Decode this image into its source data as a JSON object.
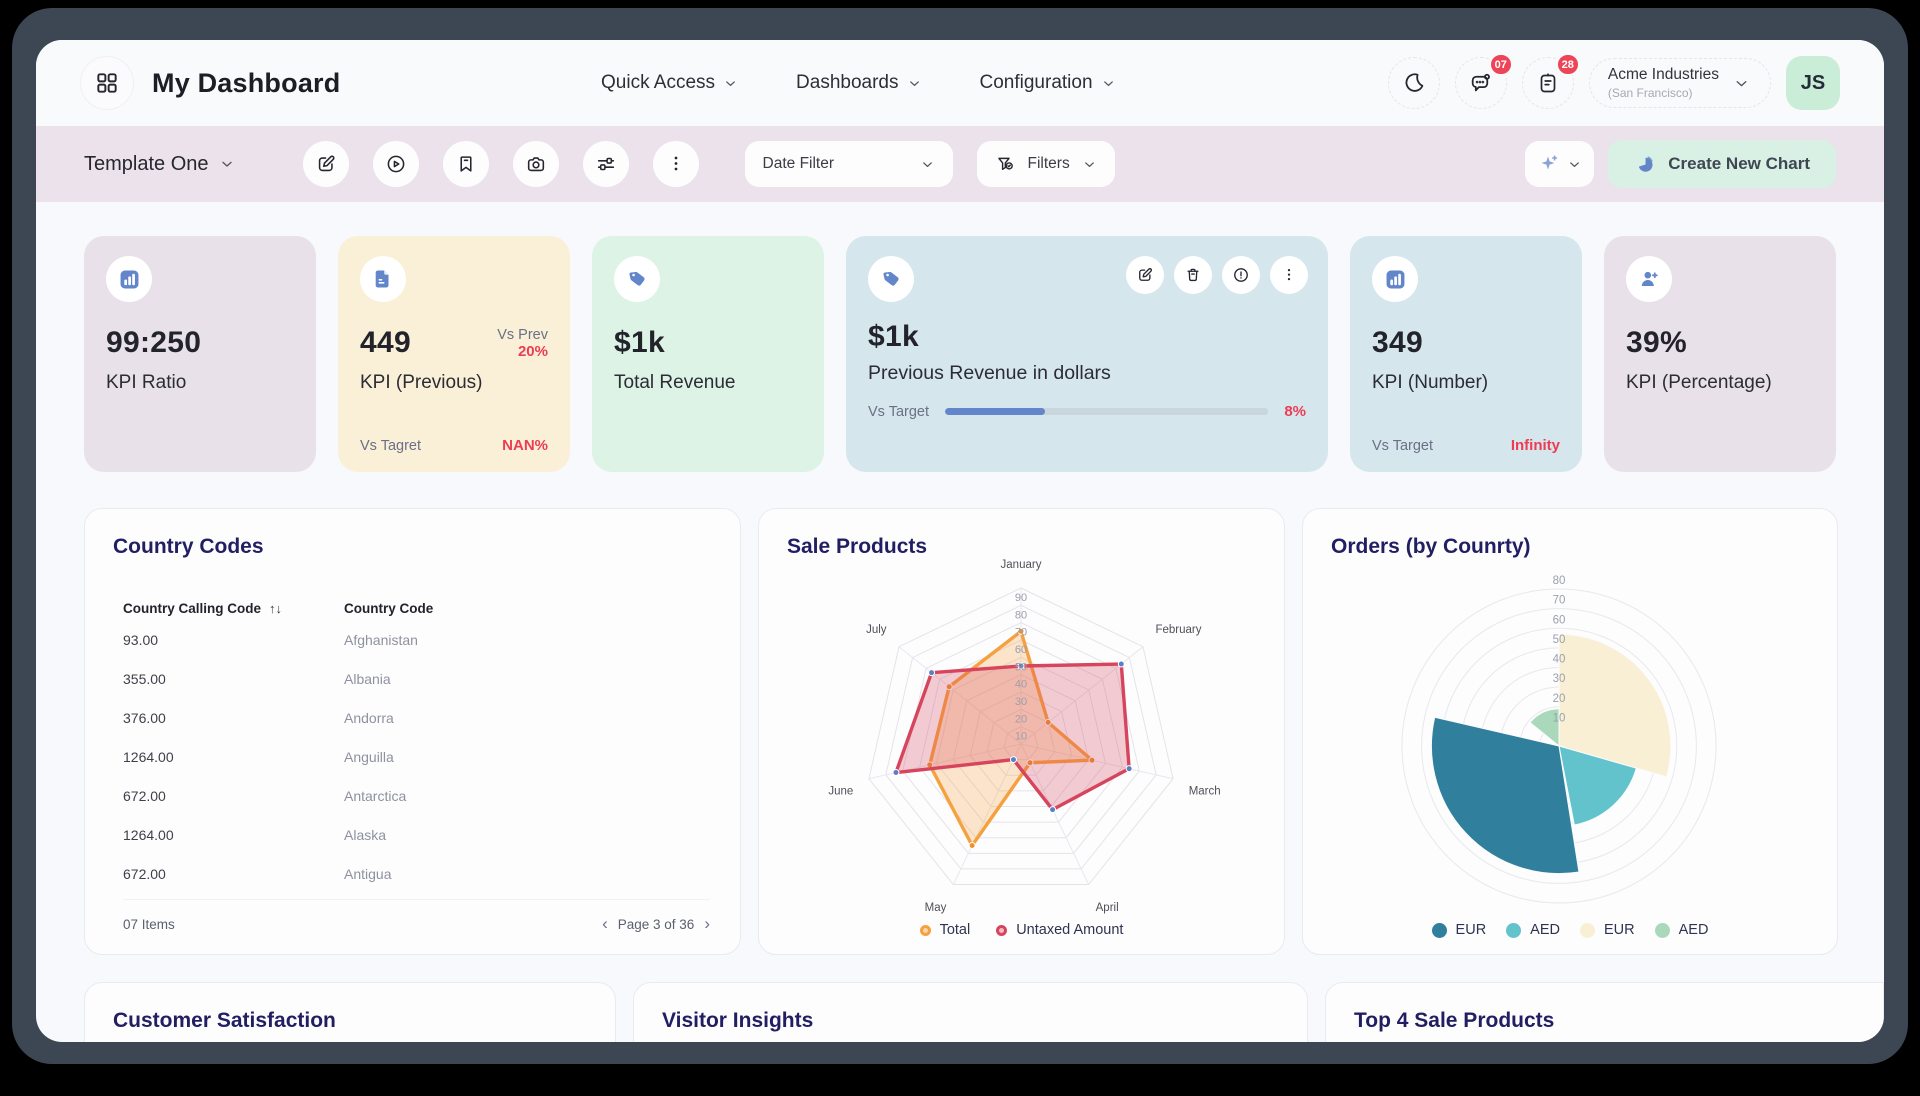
{
  "header": {
    "title": "My Dashboard",
    "nav": [
      {
        "label": "Quick Access"
      },
      {
        "label": "Dashboards"
      },
      {
        "label": "Configuration"
      }
    ],
    "chat_badge": "07",
    "tasks_badge": "28",
    "company": {
      "name": "Acme Industries",
      "location": "(San Francisco)"
    },
    "avatar_initials": "JS"
  },
  "toolbar": {
    "template": "Template One",
    "date_filter": "Date Filter",
    "filters": "Filters",
    "create_chart": "Create New Chart"
  },
  "kpis": {
    "ratio": {
      "value": "99:250",
      "label": "KPI Ratio"
    },
    "previous": {
      "value": "449",
      "label": "KPI (Previous)",
      "vs_prev_label": "Vs Prev",
      "vs_prev_value": "20%",
      "vs_target_label": "Vs Tagret",
      "vs_target_value": "NAN%"
    },
    "revenue": {
      "value": "$1k",
      "label": "Total Revenue"
    },
    "prev_revenue": {
      "value": "$1k",
      "label": "Previous Revenue in dollars",
      "vs_target_label": "Vs Target",
      "vs_target_value": "8%",
      "progress_pct": 31
    },
    "number": {
      "value": "349",
      "label": "KPI (Number)",
      "vs_target_label": "Vs Target",
      "vs_target_value": "Infinity"
    },
    "percentage": {
      "value": "39%",
      "label": "KPI (Percentage)"
    }
  },
  "country_codes": {
    "title": "Country Codes",
    "columns": [
      "Country Calling Code",
      "Country Code"
    ],
    "rows": [
      [
        "93.00",
        "Afghanistan"
      ],
      [
        "355.00",
        "Albania"
      ],
      [
        "376.00",
        "Andorra"
      ],
      [
        "1264.00",
        "Anguilla"
      ],
      [
        "672.00",
        "Antarctica"
      ],
      [
        "1264.00",
        "Alaska"
      ],
      [
        "672.00",
        "Antigua"
      ]
    ],
    "items_label": "07 Items",
    "page_label": "Page 3 of 36"
  },
  "chart_data": [
    {
      "type": "radar",
      "title": "Sale Products",
      "categories": [
        "January",
        "February",
        "March",
        "April",
        "May",
        "June",
        "July"
      ],
      "rticks": [
        10,
        20,
        30,
        40,
        50,
        60,
        70,
        80,
        90
      ],
      "rmax": 90,
      "grid": true,
      "legend_position": "bottom",
      "series": [
        {
          "name": "Total",
          "color": "#f6a13f",
          "swatch_fill": "#fbd6a8",
          "point_color": "#ef8f2e",
          "values": [
            65,
            20,
            42,
            12,
            65,
            54,
            53
          ]
        },
        {
          "name": "Untaxed Amount",
          "color": "#d6455d",
          "swatch_fill": "#f3bcc6",
          "point_color": "#5b7fc7",
          "values": [
            45,
            74,
            64,
            42,
            10,
            74,
            66
          ]
        }
      ]
    },
    {
      "type": "polar-area",
      "title": "Orders (by Counrty)",
      "rticks": [
        10,
        20,
        30,
        40,
        50,
        60,
        70,
        80
      ],
      "rmax": 80,
      "grid": true,
      "legend_position": "bottom",
      "segments": [
        {
          "label": "EUR",
          "color": "#f8efd4",
          "start_deg": 0,
          "end_deg": 106,
          "value": 57
        },
        {
          "label": "AED",
          "color": "#62c3cd",
          "start_deg": 106,
          "end_deg": 169,
          "value": 41
        },
        {
          "label": "AED",
          "color": "#a9d9ba",
          "start_deg": 309,
          "end_deg": 360,
          "value": 19
        },
        {
          "label": "EUR",
          "color": "#2f7f9d",
          "start_deg": 171,
          "end_deg": 283,
          "value": 65
        }
      ],
      "legend": [
        {
          "label": "EUR",
          "color": "#2f7f9d"
        },
        {
          "label": "AED",
          "color": "#62c3cd"
        },
        {
          "label": "EUR",
          "color": "#f8efd4"
        },
        {
          "label": "AED",
          "color": "#a9d9ba"
        }
      ]
    }
  ],
  "bottom_cards": [
    {
      "title": "Customer Satisfaction"
    },
    {
      "title": "Visitor Insights"
    },
    {
      "title": "Top 4 Sale Products"
    }
  ],
  "colors": {
    "accent_red": "#ee3c55",
    "icon_blue": "#6286c9",
    "navy_title": "#221e63",
    "mint_button": "#d9f1e4",
    "toolbar_bg": "#ebe2ec"
  }
}
